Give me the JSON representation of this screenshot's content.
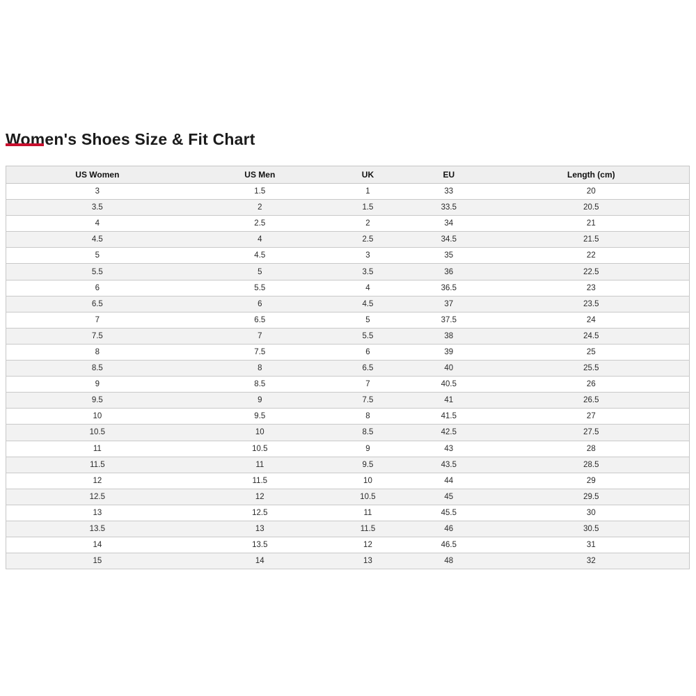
{
  "page": {
    "title": "Women's Shoes Size & Fit Chart",
    "accent_color": "#c8102e"
  },
  "size_chart": {
    "headers": [
      "US Women",
      "US Men",
      "UK",
      "EU",
      "Length (cm)"
    ],
    "rows": [
      [
        "3",
        "1.5",
        "1",
        "33",
        "20"
      ],
      [
        "3.5",
        "2",
        "1.5",
        "33.5",
        "20.5"
      ],
      [
        "4",
        "2.5",
        "2",
        "34",
        "21"
      ],
      [
        "4.5",
        "4",
        "2.5",
        "34.5",
        "21.5"
      ],
      [
        "5",
        "4.5",
        "3",
        "35",
        "22"
      ],
      [
        "5.5",
        "5",
        "3.5",
        "36",
        "22.5"
      ],
      [
        "6",
        "5.5",
        "4",
        "36.5",
        "23"
      ],
      [
        "6.5",
        "6",
        "4.5",
        "37",
        "23.5"
      ],
      [
        "7",
        "6.5",
        "5",
        "37.5",
        "24"
      ],
      [
        "7.5",
        "7",
        "5.5",
        "38",
        "24.5"
      ],
      [
        "8",
        "7.5",
        "6",
        "39",
        "25"
      ],
      [
        "8.5",
        "8",
        "6.5",
        "40",
        "25.5"
      ],
      [
        "9",
        "8.5",
        "7",
        "40.5",
        "26"
      ],
      [
        "9.5",
        "9",
        "7.5",
        "41",
        "26.5"
      ],
      [
        "10",
        "9.5",
        "8",
        "41.5",
        "27"
      ],
      [
        "10.5",
        "10",
        "8.5",
        "42.5",
        "27.5"
      ],
      [
        "11",
        "10.5",
        "9",
        "43",
        "28"
      ],
      [
        "11.5",
        "11",
        "9.5",
        "43.5",
        "28.5"
      ],
      [
        "12",
        "11.5",
        "10",
        "44",
        "29"
      ],
      [
        "12.5",
        "12",
        "10.5",
        "45",
        "29.5"
      ],
      [
        "13",
        "12.5",
        "11",
        "45.5",
        "30"
      ],
      [
        "13.5",
        "13",
        "11.5",
        "46",
        "30.5"
      ],
      [
        "14",
        "13.5",
        "12",
        "46.5",
        "31"
      ],
      [
        "15",
        "14",
        "13",
        "48",
        "32"
      ]
    ]
  }
}
